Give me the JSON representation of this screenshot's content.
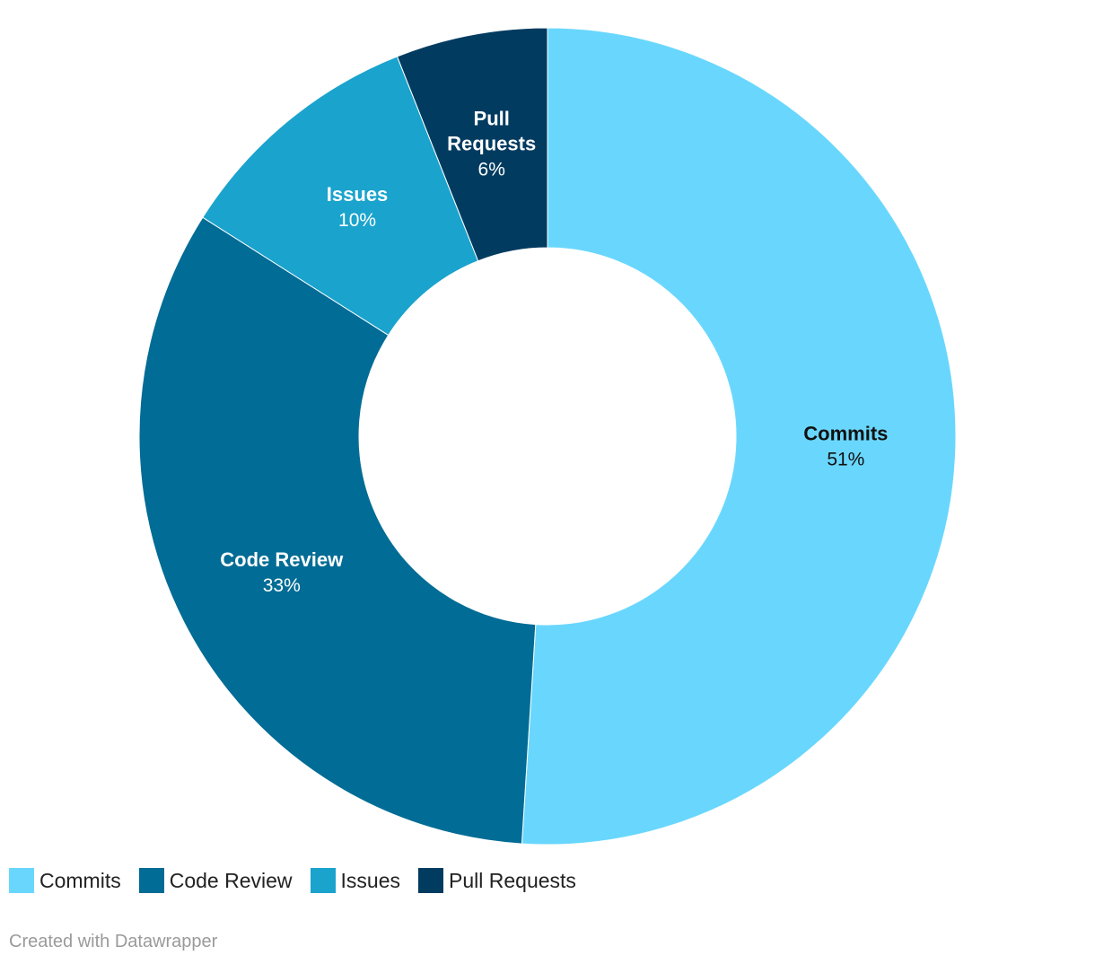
{
  "chart_data": {
    "type": "pie",
    "variant": "donut",
    "slices": [
      {
        "label": "Commits",
        "value": 51,
        "value_label": "51%",
        "color": "#69d7fd",
        "label_color": "#111111"
      },
      {
        "label": "Code Review",
        "value": 33,
        "value_label": "33%",
        "color": "#016c95",
        "label_color": "#ffffff"
      },
      {
        "label": "Issues",
        "value": 10,
        "value_label": "10%",
        "color": "#1aa3cd",
        "label_color": "#ffffff"
      },
      {
        "label": "Pull Requests",
        "value": 6,
        "value_label": "6%",
        "color": "#013b60",
        "label_color": "#ffffff"
      }
    ],
    "legend_position": "bottom-left"
  },
  "legend": {
    "items": [
      {
        "label": "Commits",
        "color": "#69d7fd"
      },
      {
        "label": "Code Review",
        "color": "#016c95"
      },
      {
        "label": "Issues",
        "color": "#1aa3cd"
      },
      {
        "label": "Pull Requests",
        "color": "#013b60"
      }
    ]
  },
  "footer": {
    "credit": "Created with Datawrapper"
  }
}
